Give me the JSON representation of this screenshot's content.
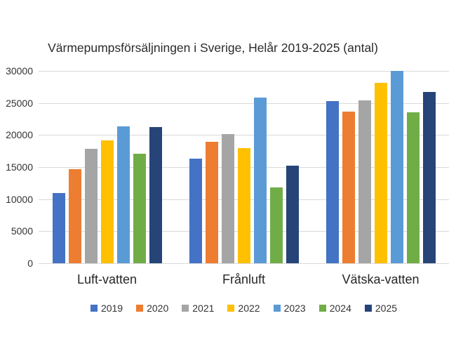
{
  "chart_data": {
    "type": "bar",
    "title": "Värmepumpsförsäljningen i Sverige, Helår 2019-2025 (antal)",
    "categories": [
      "Luft-vatten",
      "Frånluft",
      "Vätska-vatten"
    ],
    "series": [
      {
        "name": "2019",
        "color": "#4472C4",
        "values": [
          11000,
          16300,
          25300
        ]
      },
      {
        "name": "2020",
        "color": "#ED7D31",
        "values": [
          14700,
          18900,
          23700
        ]
      },
      {
        "name": "2021",
        "color": "#A5A5A5",
        "values": [
          17800,
          20100,
          25400
        ]
      },
      {
        "name": "2022",
        "color": "#FFC000",
        "values": [
          19200,
          18000,
          28100
        ]
      },
      {
        "name": "2023",
        "color": "#5B9BD5",
        "values": [
          21300,
          25800,
          30000
        ]
      },
      {
        "name": "2024",
        "color": "#70AD47",
        "values": [
          17100,
          11800,
          23500
        ]
      },
      {
        "name": "2025",
        "color": "#264478",
        "values": [
          21200,
          15200,
          26700
        ]
      }
    ],
    "ylim": [
      0,
      30000
    ],
    "y_ticks": [
      30000,
      25000,
      20000,
      15000,
      10000,
      5000,
      0
    ],
    "grid": true,
    "legend_position": "bottom",
    "gridline_color": "#D9D9D9",
    "text_color": "#333333"
  }
}
